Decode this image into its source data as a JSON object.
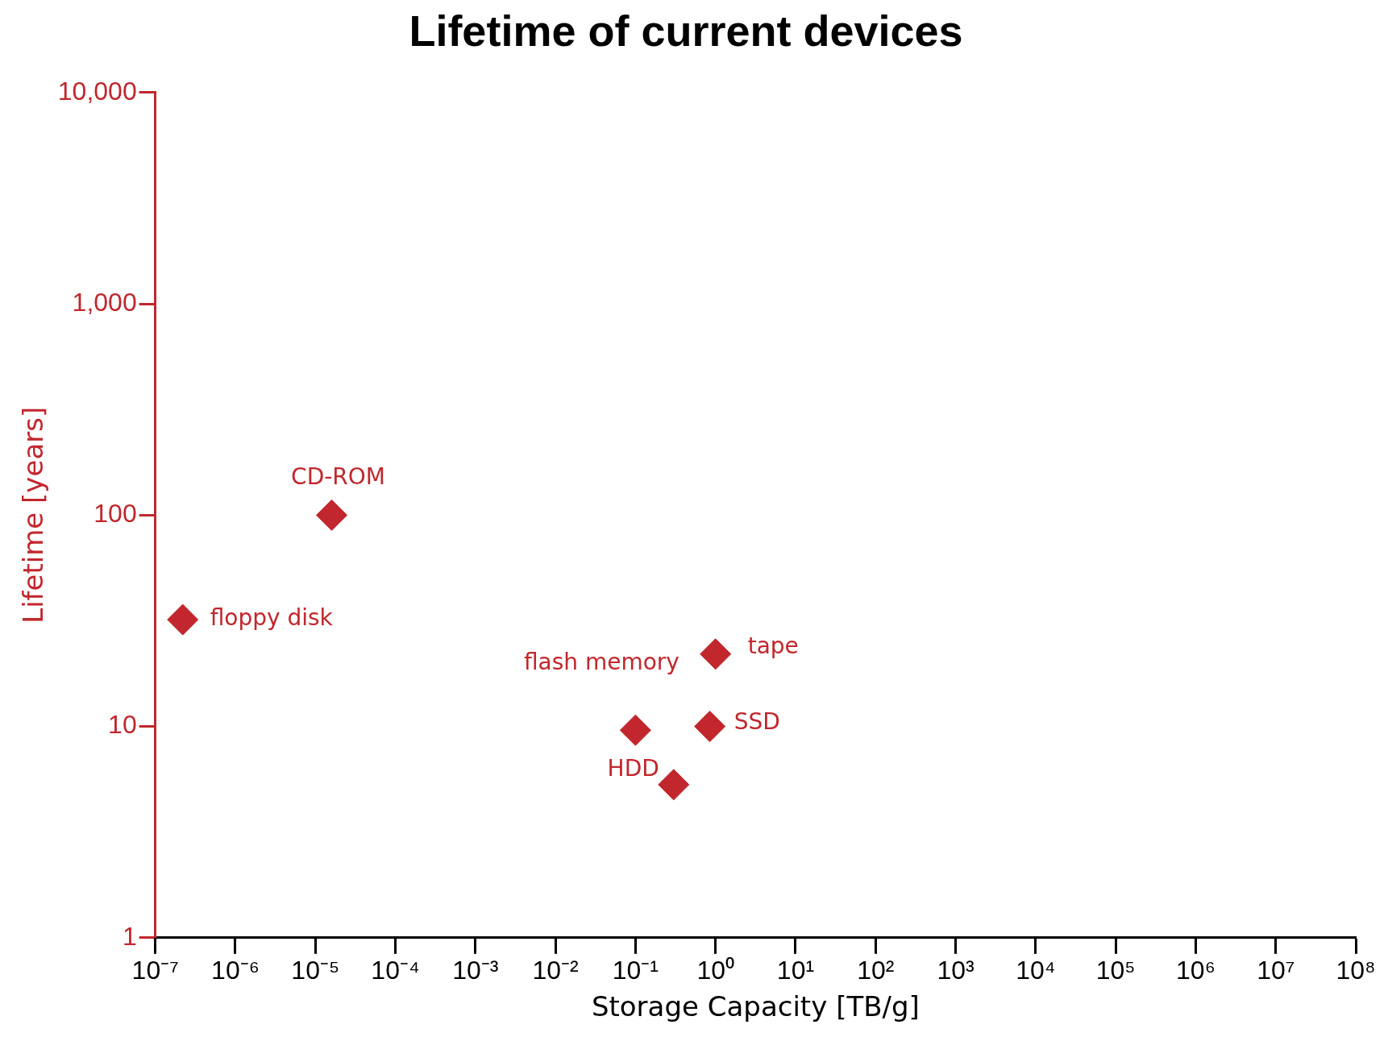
{
  "chart_data": {
    "type": "scatter",
    "title": "Lifetime of current devices",
    "xlabel": "Storage Capacity [TB/g]",
    "ylabel": "Lifetime [years]",
    "x": [
      2.2e-07,
      1.6e-05,
      0.1,
      0.3,
      0.85,
      1.0
    ],
    "series": [
      {
        "color": "#c1272d",
        "values": [
          32,
          100,
          9.6,
          5.3,
          10,
          22
        ]
      }
    ],
    "annotations": [
      {
        "text": "floppy disk",
        "x": 2.2e-07,
        "y": 32
      },
      {
        "text": "CD-ROM",
        "x": 1.6e-05,
        "y": 100
      },
      {
        "text": "flash memory",
        "x": 0.1,
        "y": 9.6
      },
      {
        "text": "HDD",
        "x": 0.3,
        "y": 5.3
      },
      {
        "text": "SSD",
        "x": 0.85,
        "y": 10
      },
      {
        "text": "tape",
        "x": 1.0,
        "y": 22
      }
    ],
    "log": "xy",
    "marker": "diamond",
    "grid": false,
    "legend": false,
    "xlim": [
      1e-07,
      100000000.0
    ],
    "ylim": [
      1,
      10000
    ],
    "xticks": [
      {
        "value": 1e-07,
        "label": "10⁻⁷"
      },
      {
        "value": 1e-06,
        "label": "10⁻⁶"
      },
      {
        "value": 1e-05,
        "label": "10⁻⁵"
      },
      {
        "value": 0.0001,
        "label": "10⁻⁴"
      },
      {
        "value": 0.001,
        "label": "10⁻³"
      },
      {
        "value": 0.01,
        "label": "10⁻²"
      },
      {
        "value": 0.1,
        "label": "10⁻¹"
      },
      {
        "value": 1,
        "label": "10⁰"
      },
      {
        "value": 10,
        "label": "10¹"
      },
      {
        "value": 100,
        "label": "10²"
      },
      {
        "value": 1000,
        "label": "10³"
      },
      {
        "value": 10000,
        "label": "10⁴"
      },
      {
        "value": 100000,
        "label": "10⁵"
      },
      {
        "value": 1000000,
        "label": "10⁶"
      },
      {
        "value": 10000000,
        "label": "10⁷"
      },
      {
        "value": 100000000,
        "label": "10⁸"
      }
    ],
    "yticks": [
      1,
      10,
      100,
      {
        "value": 1000,
        "label": "1,000"
      },
      {
        "value": 10000,
        "label": "10,000"
      }
    ]
  }
}
